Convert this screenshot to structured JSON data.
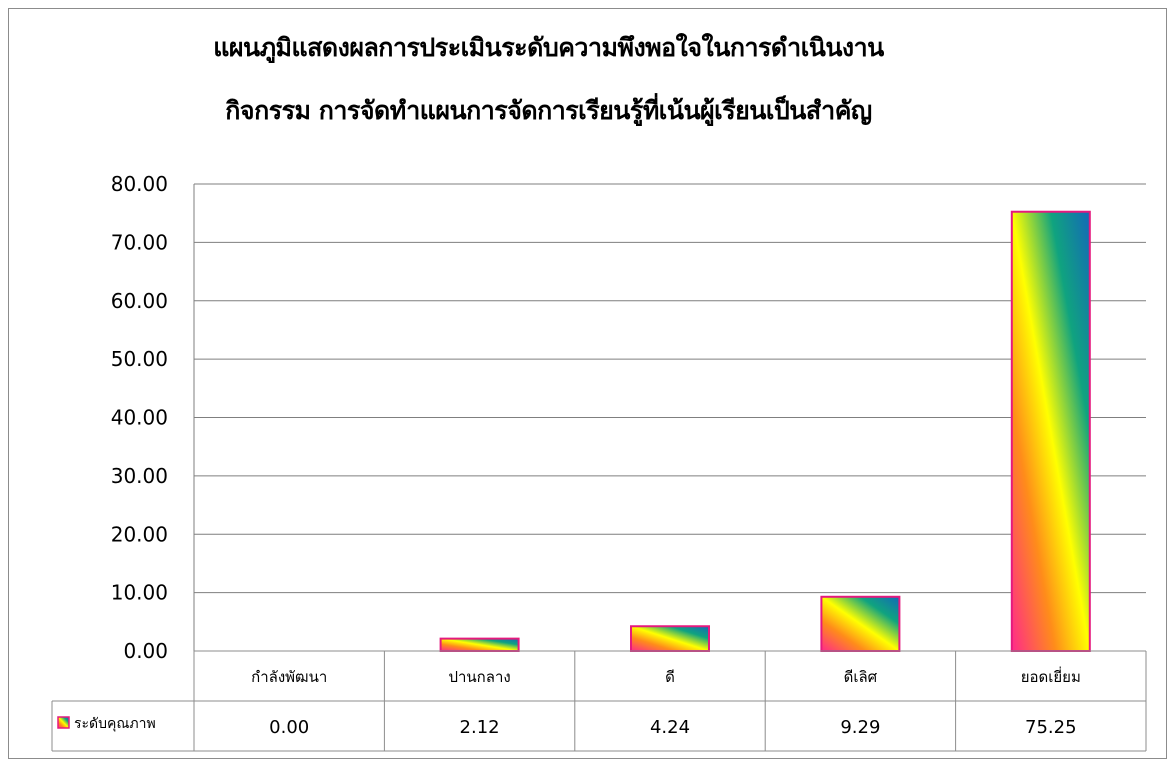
{
  "chart_data": {
    "type": "bar",
    "title": "แผนภูมิแสดงผลการประเมินระดับความพึงพอใจในการดำเนินงาน",
    "subtitle": "กิจกรรม การจัดทำแผนการจัดการเรียนรู้ที่เน้นผู้เรียนเป็นสำคัญ",
    "categories": [
      "กำลังพัฒนา",
      "ปานกลาง",
      "ดี",
      "ดีเลิศ",
      "ยอดเยี่ยม"
    ],
    "series": [
      {
        "name": "ระดับคุณภาพ",
        "values": [
          0.0,
          2.12,
          4.24,
          9.29,
          75.25
        ],
        "labels": [
          "0.00",
          "2.12",
          "4.24",
          "9.29",
          "75.25"
        ]
      }
    ],
    "ylim": [
      0,
      80
    ],
    "yticks": [
      "0.00",
      "10.00",
      "20.00",
      "30.00",
      "40.00",
      "50.00",
      "60.00",
      "70.00",
      "80.00"
    ],
    "xlabel": "",
    "ylabel": "",
    "grid": true,
    "legend": "data-table-left",
    "colors": {
      "bar_border": "#e5197e",
      "gradient": [
        "#ff2a8a",
        "#ff8c1a",
        "#ffff00",
        "#10a37f",
        "#1469b8"
      ],
      "grid": "#7f7f7f",
      "table_border": "#8c8c8c"
    }
  }
}
